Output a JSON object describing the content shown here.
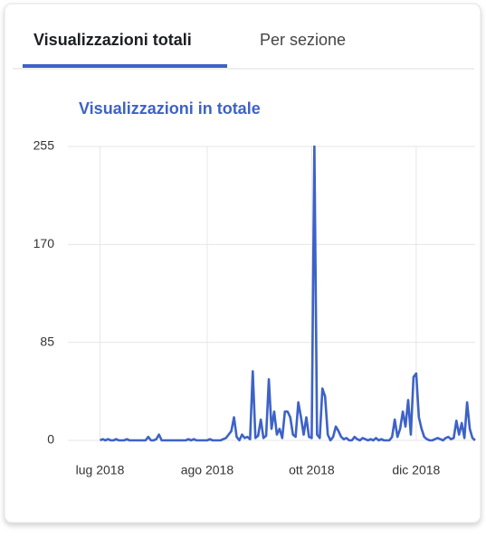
{
  "tabs": [
    {
      "label": "Visualizzazioni totali",
      "selected": true
    },
    {
      "label": "Per sezione",
      "selected": false
    }
  ],
  "chart_data": {
    "type": "line",
    "title": "Visualizzazioni in totale",
    "color": "#3d62c8",
    "grid": true,
    "x": [
      0,
      1,
      2,
      3,
      4,
      5,
      6,
      7,
      8,
      9,
      10,
      11,
      12,
      13,
      14,
      15,
      16,
      17,
      18,
      19,
      20,
      21,
      22,
      23,
      24,
      25,
      26,
      27,
      28,
      29,
      30,
      31,
      32,
      33,
      34,
      35,
      36,
      37,
      38,
      39,
      40,
      41,
      42,
      43,
      44,
      45,
      46,
      47,
      48,
      49,
      50,
      51,
      52,
      53,
      54,
      55,
      56,
      57,
      58,
      59,
      60,
      61,
      62,
      63,
      64,
      65,
      66,
      67,
      68,
      69,
      70,
      71,
      72,
      73,
      74,
      75,
      76,
      77,
      78,
      79,
      80,
      81,
      82,
      83,
      84,
      85,
      86,
      87,
      88,
      89,
      90,
      91,
      92,
      93,
      94,
      95,
      96,
      97,
      98,
      99,
      100,
      101,
      102,
      103,
      104,
      105,
      106,
      107,
      108,
      109,
      110,
      111,
      112,
      113,
      114,
      115,
      116,
      117,
      118,
      119,
      120,
      121,
      122,
      123,
      124,
      125,
      126,
      127,
      128,
      129,
      130,
      131,
      132,
      133,
      134,
      135,
      136,
      137,
      138,
      139,
      140
    ],
    "values": [
      0,
      1,
      0,
      1,
      0,
      0,
      1,
      0,
      0,
      0,
      1,
      0,
      0,
      0,
      0,
      0,
      0,
      0,
      3,
      0,
      0,
      1,
      5,
      0,
      0,
      0,
      0,
      0,
      0,
      0,
      0,
      0,
      0,
      1,
      0,
      1,
      0,
      0,
      0,
      0,
      0,
      1,
      0,
      0,
      0,
      0,
      1,
      2,
      5,
      8,
      20,
      3,
      0,
      5,
      2,
      3,
      1,
      60,
      2,
      4,
      18,
      2,
      4,
      53,
      10,
      25,
      5,
      10,
      2,
      25,
      25,
      20,
      5,
      3,
      33,
      20,
      5,
      20,
      3,
      2,
      255,
      5,
      2,
      45,
      38,
      5,
      0,
      3,
      12,
      8,
      3,
      1,
      2,
      0,
      0,
      3,
      1,
      0,
      2,
      1,
      0,
      1,
      0,
      2,
      0,
      1,
      0,
      0,
      0,
      3,
      18,
      3,
      10,
      25,
      12,
      35,
      5,
      55,
      58,
      20,
      10,
      3,
      1,
      0,
      0,
      1,
      2,
      1,
      0,
      2,
      3,
      1,
      2,
      17,
      5,
      15,
      2,
      33,
      10,
      2,
      0
    ],
    "xlim": [
      -12,
      140
    ],
    "xticks": [
      {
        "value": 0,
        "label": "lug 2018"
      },
      {
        "value": 40,
        "label": "ago 2018"
      },
      {
        "value": 79,
        "label": "ott 2018"
      },
      {
        "value": 118,
        "label": "dic 2018"
      }
    ],
    "ylim": [
      0,
      255
    ],
    "yticks": [
      0,
      85,
      170,
      255
    ]
  }
}
